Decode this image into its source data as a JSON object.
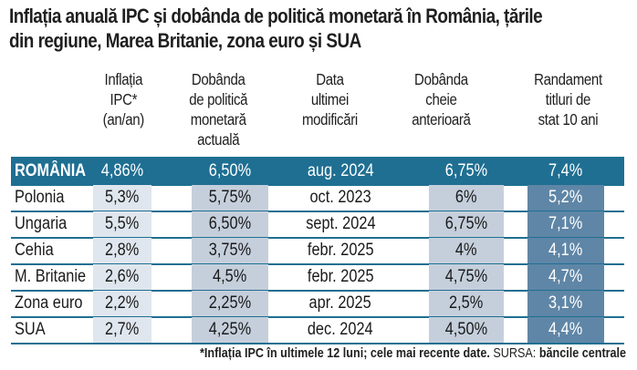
{
  "title_line1": "Inflația anuală IPC și dobânda de politică monetară în România, țările",
  "title_line2": "din regiune, Marea Britanie, zona euro și SUA",
  "headers": [
    [
      "Inflația",
      "IPC*",
      "(an/an)"
    ],
    [
      "Dobânda",
      "de politică",
      "monetară",
      "actuală"
    ],
    [
      "Data",
      "ultimei",
      "modificări"
    ],
    [
      "Dobânda",
      "cheie",
      "anterioară"
    ],
    [
      "Randament",
      "titluri de",
      "stat 10 ani"
    ]
  ],
  "rows": [
    {
      "country": "ROMÂNIA",
      "inflation": "4,86%",
      "policy_rate": "6,50%",
      "last_change": "aug. 2024",
      "previous_rate": "6,75%",
      "bond_yield": "7,4%"
    },
    {
      "country": "Polonia",
      "inflation": "5,3%",
      "policy_rate": "5,75%",
      "last_change": "oct. 2023",
      "previous_rate": "6%",
      "bond_yield": "5,2%"
    },
    {
      "country": "Ungaria",
      "inflation": "5,5%",
      "policy_rate": "6,50%",
      "last_change": "sept. 2024",
      "previous_rate": "6,75%",
      "bond_yield": "7,1%"
    },
    {
      "country": "Cehia",
      "inflation": "2,8%",
      "policy_rate": "3,75%",
      "last_change": "febr. 2025",
      "previous_rate": "4%",
      "bond_yield": "4,1%"
    },
    {
      "country": "M. Britanie",
      "inflation": "2,6%",
      "policy_rate": "4,5%",
      "last_change": "febr. 2025",
      "previous_rate": "4,75%",
      "bond_yield": "4,7%"
    },
    {
      "country": "Zona euro",
      "inflation": "2,2%",
      "policy_rate": "2,25%",
      "last_change": "apr. 2025",
      "previous_rate": "2,5%",
      "bond_yield": "3,1%"
    },
    {
      "country": "SUA",
      "inflation": "2,7%",
      "policy_rate": "4,25%",
      "last_change": "dec. 2024",
      "previous_rate": "4,50%",
      "bond_yield": "4,4%"
    }
  ],
  "footnote": {
    "note": "*Inflația IPC în ultimele 12 luni; cele mai recente date.",
    "source_label": "SURSA:",
    "source": "băncile centrale"
  },
  "colors": {
    "highlight_row": "#1f6f92",
    "shade_light": "#dfe6ee",
    "shade_mid": "#c5cfdc",
    "shade_dark": "#5f86a6"
  }
}
